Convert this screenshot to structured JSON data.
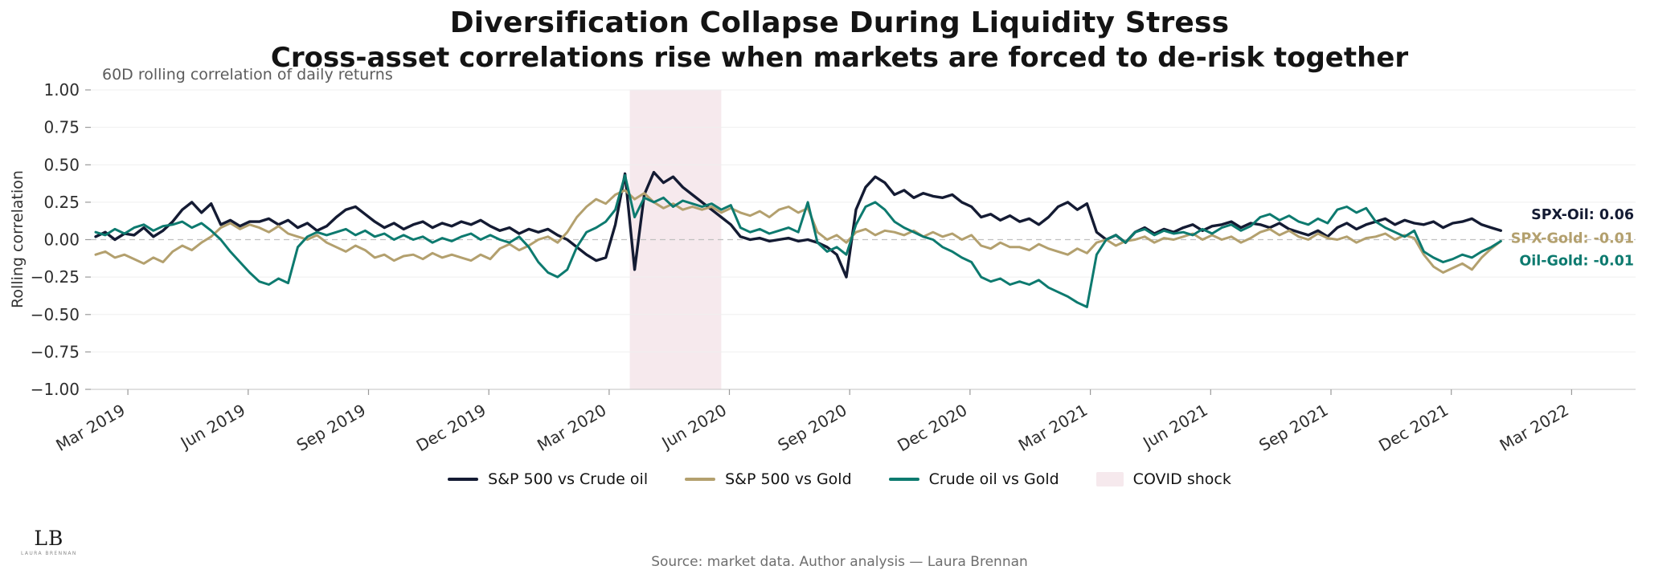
{
  "header": {
    "title": "Diversification Collapse During Liquidity Stress",
    "subtitle": "Cross-asset correlations rise when markets are forced to de-risk together",
    "note": "60D rolling correlation of daily returns"
  },
  "axes": {
    "y_label": "Rolling correlation"
  },
  "footer": {
    "source": "Source: market data. Author analysis — Laura Brennan",
    "logo_text": "LB",
    "logo_subtext": "LAURA BRENNAN"
  },
  "colors": {
    "spx_oil": "#141b33",
    "spx_gold": "#b3a06e",
    "oil_gold": "#0d7a6f",
    "covid_band": "#f6e9ed",
    "zero_line": "#c0c0c0",
    "grid": "#efefef"
  },
  "chart_data": {
    "type": "line",
    "title": "Diversification Collapse During Liquidity Stress",
    "subtitle": "Cross-asset correlations rise when markets are forced to de-risk together",
    "annotation": "60D rolling correlation of daily returns",
    "xlabel": "",
    "ylabel": "Rolling correlation",
    "grid": true,
    "legend_position": "bottom center",
    "x_range": [
      2019.09,
      2022.3
    ],
    "y_range": [
      -1.0,
      1.0
    ],
    "x_start": 2019.1,
    "x_step": 0.02,
    "n_points": 147,
    "y_ticks": [
      {
        "label": "1.00",
        "value": 1.0
      },
      {
        "label": "0.75",
        "value": 0.75
      },
      {
        "label": "0.50",
        "value": 0.5
      },
      {
        "label": "0.25",
        "value": 0.25
      },
      {
        "label": "0.00",
        "value": 0.0
      },
      {
        "label": "−0.25",
        "value": -0.25
      },
      {
        "label": "−0.50",
        "value": -0.5
      },
      {
        "label": "−0.75",
        "value": -0.75
      },
      {
        "label": "−1.00",
        "value": -1.0
      }
    ],
    "x_ticks": [
      {
        "label": "Mar 2019",
        "value": 2019.167
      },
      {
        "label": "Jun 2019",
        "value": 2019.417
      },
      {
        "label": "Sep 2019",
        "value": 2019.667
      },
      {
        "label": "Dec 2019",
        "value": 2019.917
      },
      {
        "label": "Mar 2020",
        "value": 2020.167
      },
      {
        "label": "Jun 2020",
        "value": 2020.417
      },
      {
        "label": "Sep 2020",
        "value": 2020.667
      },
      {
        "label": "Dec 2020",
        "value": 2020.917
      },
      {
        "label": "Mar 2021",
        "value": 2021.167
      },
      {
        "label": "Jun 2021",
        "value": 2021.417
      },
      {
        "label": "Sep 2021",
        "value": 2021.667
      },
      {
        "label": "Dec 2021",
        "value": 2021.917
      },
      {
        "label": "Mar 2022",
        "value": 2022.167
      }
    ],
    "shaded_region": {
      "label": "COVID shock",
      "from": 2020.21,
      "to": 2020.4,
      "color": "#f6e9ed"
    },
    "series": [
      {
        "key": "spx-oil",
        "name": "S&P 500 vs Crude oil",
        "color": "#141b33",
        "values": [
          0.02,
          0.05,
          0.0,
          0.04,
          0.03,
          0.08,
          0.02,
          0.06,
          0.12,
          0.2,
          0.25,
          0.18,
          0.24,
          0.1,
          0.13,
          0.09,
          0.12,
          0.12,
          0.14,
          0.1,
          0.13,
          0.08,
          0.11,
          0.06,
          0.09,
          0.15,
          0.2,
          0.22,
          0.17,
          0.12,
          0.08,
          0.11,
          0.07,
          0.1,
          0.12,
          0.08,
          0.11,
          0.09,
          0.12,
          0.1,
          0.13,
          0.09,
          0.06,
          0.08,
          0.04,
          0.07,
          0.05,
          0.07,
          0.03,
          0.0,
          -0.05,
          -0.1,
          -0.14,
          -0.12,
          0.1,
          0.44,
          -0.2,
          0.3,
          0.45,
          0.38,
          0.42,
          0.35,
          0.3,
          0.25,
          0.2,
          0.15,
          0.1,
          0.02,
          0.0,
          0.01,
          -0.01,
          0.0,
          0.01,
          -0.01,
          0.0,
          -0.02,
          -0.05,
          -0.1,
          -0.25,
          0.2,
          0.35,
          0.42,
          0.38,
          0.3,
          0.33,
          0.28,
          0.31,
          0.29,
          0.28,
          0.3,
          0.25,
          0.22,
          0.15,
          0.17,
          0.13,
          0.16,
          0.12,
          0.14,
          0.1,
          0.15,
          0.22,
          0.25,
          0.2,
          0.24,
          0.05,
          0.0,
          0.03,
          -0.02,
          0.05,
          0.08,
          0.04,
          0.07,
          0.05,
          0.08,
          0.1,
          0.06,
          0.09,
          0.1,
          0.12,
          0.08,
          0.11,
          0.1,
          0.08,
          0.11,
          0.07,
          0.05,
          0.03,
          0.06,
          0.02,
          0.08,
          0.11,
          0.07,
          0.1,
          0.12,
          0.14,
          0.1,
          0.13,
          0.11,
          0.1,
          0.12,
          0.08,
          0.11,
          0.12,
          0.14,
          0.1,
          0.08,
          0.06
        ]
      },
      {
        "key": "spx-gold",
        "name": "S&P 500 vs Gold",
        "color": "#b3a06e",
        "values": [
          -0.1,
          -0.08,
          -0.12,
          -0.1,
          -0.13,
          -0.16,
          -0.12,
          -0.15,
          -0.08,
          -0.04,
          -0.07,
          -0.02,
          0.02,
          0.08,
          0.11,
          0.07,
          0.1,
          0.08,
          0.05,
          0.09,
          0.04,
          0.02,
          0.0,
          0.03,
          -0.02,
          -0.05,
          -0.08,
          -0.04,
          -0.07,
          -0.12,
          -0.1,
          -0.14,
          -0.11,
          -0.1,
          -0.13,
          -0.09,
          -0.12,
          -0.1,
          -0.12,
          -0.14,
          -0.1,
          -0.13,
          -0.06,
          -0.03,
          -0.07,
          -0.04,
          0.0,
          0.02,
          -0.02,
          0.05,
          0.15,
          0.22,
          0.27,
          0.24,
          0.3,
          0.33,
          0.27,
          0.31,
          0.25,
          0.21,
          0.24,
          0.2,
          0.22,
          0.2,
          0.22,
          0.18,
          0.21,
          0.18,
          0.16,
          0.19,
          0.15,
          0.2,
          0.22,
          0.18,
          0.21,
          0.05,
          0.0,
          0.03,
          -0.02,
          0.05,
          0.07,
          0.03,
          0.06,
          0.05,
          0.03,
          0.06,
          0.02,
          0.05,
          0.02,
          0.04,
          0.0,
          0.03,
          -0.04,
          -0.06,
          -0.02,
          -0.05,
          -0.05,
          -0.07,
          -0.03,
          -0.06,
          -0.08,
          -0.1,
          -0.06,
          -0.09,
          -0.02,
          0.0,
          -0.04,
          -0.01,
          0.0,
          0.02,
          -0.02,
          0.01,
          0.0,
          0.02,
          0.04,
          0.0,
          0.03,
          0.0,
          0.02,
          -0.02,
          0.01,
          0.05,
          0.07,
          0.03,
          0.06,
          0.02,
          0.0,
          0.04,
          0.01,
          0.0,
          0.02,
          -0.02,
          0.01,
          0.02,
          0.04,
          0.0,
          0.03,
          0.01,
          -0.1,
          -0.18,
          -0.22,
          -0.19,
          -0.16,
          -0.2,
          -0.12,
          -0.06,
          -0.01
        ]
      },
      {
        "key": "oil-gold",
        "name": "Crude oil vs Gold",
        "color": "#0d7a6f",
        "values": [
          0.05,
          0.03,
          0.07,
          0.04,
          0.08,
          0.1,
          0.06,
          0.09,
          0.1,
          0.12,
          0.08,
          0.11,
          0.06,
          0.0,
          -0.08,
          -0.15,
          -0.22,
          -0.28,
          -0.3,
          -0.26,
          -0.29,
          -0.05,
          0.02,
          0.05,
          0.03,
          0.05,
          0.07,
          0.03,
          0.06,
          0.02,
          0.04,
          0.0,
          0.03,
          0.0,
          0.02,
          -0.02,
          0.01,
          -0.01,
          0.02,
          0.04,
          0.0,
          0.03,
          0.0,
          -0.02,
          0.02,
          -0.05,
          -0.15,
          -0.22,
          -0.25,
          -0.2,
          -0.05,
          0.05,
          0.08,
          0.12,
          0.2,
          0.43,
          0.15,
          0.28,
          0.25,
          0.28,
          0.22,
          0.26,
          0.24,
          0.22,
          0.24,
          0.2,
          0.23,
          0.08,
          0.05,
          0.07,
          0.04,
          0.06,
          0.08,
          0.05,
          0.25,
          -0.02,
          -0.08,
          -0.05,
          -0.1,
          0.1,
          0.22,
          0.25,
          0.2,
          0.12,
          0.08,
          0.05,
          0.02,
          0.0,
          -0.05,
          -0.08,
          -0.12,
          -0.15,
          -0.25,
          -0.28,
          -0.26,
          -0.3,
          -0.28,
          -0.3,
          -0.27,
          -0.32,
          -0.35,
          -0.38,
          -0.42,
          -0.45,
          -0.1,
          0.0,
          0.03,
          -0.02,
          0.05,
          0.07,
          0.03,
          0.06,
          0.04,
          0.05,
          0.03,
          0.07,
          0.04,
          0.08,
          0.1,
          0.06,
          0.09,
          0.15,
          0.17,
          0.13,
          0.16,
          0.12,
          0.1,
          0.14,
          0.11,
          0.2,
          0.22,
          0.18,
          0.21,
          0.12,
          0.08,
          0.05,
          0.02,
          0.06,
          -0.08,
          -0.12,
          -0.15,
          -0.13,
          -0.1,
          -0.12,
          -0.08,
          -0.05,
          -0.01
        ]
      }
    ],
    "end_labels": [
      {
        "key": "spx-oil",
        "text": "SPX-Oil: 0.06",
        "color": "#141b33",
        "y": 0.17
      },
      {
        "key": "spx-gold",
        "text": "SPX-Gold: -0.01",
        "color": "#b3a06e",
        "y": 0.01
      },
      {
        "key": "oil-gold",
        "text": "Oil-Gold: -0.01",
        "color": "#0d7a6f",
        "y": -0.14
      }
    ],
    "legend": [
      {
        "key": "spx-oil",
        "label": "S&P 500 vs Crude oil",
        "type": "line",
        "color": "#141b33"
      },
      {
        "key": "spx-gold",
        "label": "S&P 500 vs Gold",
        "type": "line",
        "color": "#b3a06e"
      },
      {
        "key": "oil-gold",
        "label": "Crude oil vs Gold",
        "type": "line",
        "color": "#0d7a6f"
      },
      {
        "key": "covid-shock",
        "label": "COVID shock",
        "type": "patch",
        "color": "#f6e9ed"
      }
    ]
  }
}
